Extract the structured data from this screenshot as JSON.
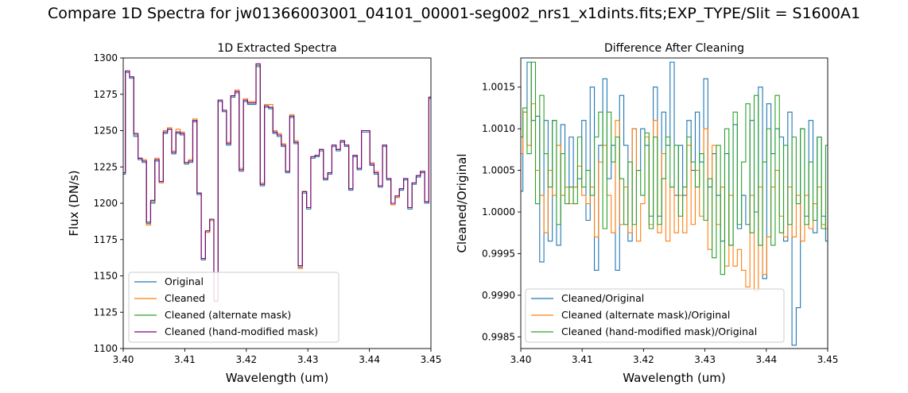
{
  "figure": {
    "suptitle": "Compare 1D Spectra for jw01366003001_04101_00001-seg002_nrs1_x1dints.fits;EXP_TYPE/Slit = S1600A1"
  },
  "chart_data": [
    {
      "type": "line",
      "step": true,
      "title": "1D Extracted Spectra",
      "xlabel": "Wavelength (um)",
      "ylabel": "Flux (DN/s)",
      "xlim": [
        3.4,
        3.45
      ],
      "ylim": [
        1100,
        1300
      ],
      "xticks": [
        "3.40",
        "3.41",
        "3.42",
        "3.43",
        "3.44",
        "3.45"
      ],
      "yticks": [
        "1100",
        "1125",
        "1150",
        "1175",
        "1200",
        "1225",
        "1250",
        "1275",
        "1300"
      ],
      "legend_position": "lower-left",
      "x_start": 3.4,
      "x_step": 0.000685,
      "series": [
        {
          "name": "Original",
          "color": "#1f77b4",
          "values": [
            1220,
            1290,
            1286,
            1246,
            1230,
            1228,
            1186,
            1200,
            1229,
            1214,
            1248,
            1251,
            1234,
            1248,
            1247,
            1227,
            1228,
            1256,
            1206,
            1161,
            1180,
            1188,
            1132,
            1270,
            1263,
            1240,
            1273,
            1276,
            1222,
            1270,
            1268,
            1268,
            1294,
            1212,
            1266,
            1265,
            1248,
            1246,
            1239,
            1221,
            1259,
            1241,
            1156,
            1207,
            1196,
            1231,
            1232,
            1236,
            1216,
            1220,
            1239,
            1236,
            1242,
            1239,
            1209,
            1232,
            1223,
            1249,
            1249,
            1226,
            1220,
            1211,
            1239,
            1216,
            1199,
            1204,
            1209,
            1216,
            1196,
            1213,
            1218,
            1221,
            1200,
            1272,
            1265,
            1272,
            1248,
            1249,
            1265,
            1224,
            1274,
            1223,
            1225
          ]
        },
        {
          "name": "Cleaned",
          "color": "#ff7f0e",
          "values": [
            1221,
            1291,
            1287,
            1248,
            1231,
            1230,
            1185,
            1201,
            1231,
            1214,
            1250,
            1252,
            1236,
            1251,
            1249,
            1228,
            1230,
            1258,
            1207,
            1162,
            1180,
            1188,
            1132,
            1271,
            1264,
            1242,
            1274,
            1278,
            1224,
            1272,
            1270,
            1270,
            1295,
            1214,
            1268,
            1268,
            1250,
            1248,
            1241,
            1222,
            1261,
            1243,
            1155,
            1208,
            1197,
            1232,
            1233,
            1237,
            1217,
            1221,
            1240,
            1237,
            1243,
            1240,
            1210,
            1233,
            1224,
            1250,
            1250,
            1228,
            1222,
            1212,
            1240,
            1217,
            1199,
            1204,
            1210,
            1217,
            1197,
            1214,
            1219,
            1222,
            1201,
            1273,
            1266,
            1273,
            1249,
            1250,
            1266,
            1225,
            1276,
            1224,
            1226
          ]
        },
        {
          "name": "Cleaned (alternate mask)",
          "color": "#2ca02c",
          "values": [
            1221,
            1291,
            1287,
            1247,
            1231,
            1229,
            1186,
            1201,
            1230,
            1215,
            1249,
            1251,
            1235,
            1249,
            1248,
            1227,
            1229,
            1257,
            1207,
            1162,
            1181,
            1189,
            1133,
            1271,
            1264,
            1241,
            1274,
            1277,
            1223,
            1271,
            1269,
            1269,
            1295,
            1213,
            1267,
            1266,
            1249,
            1247,
            1240,
            1222,
            1260,
            1242,
            1157,
            1208,
            1197,
            1232,
            1233,
            1237,
            1217,
            1221,
            1240,
            1237,
            1243,
            1240,
            1210,
            1233,
            1224,
            1250,
            1250,
            1227,
            1221,
            1212,
            1240,
            1217,
            1200,
            1205,
            1210,
            1217,
            1197,
            1214,
            1219,
            1222,
            1201,
            1273,
            1266,
            1273,
            1249,
            1250,
            1266,
            1225,
            1275,
            1224,
            1226
          ]
        },
        {
          "name": "Cleaned (hand-modified mask)",
          "color": "#800080",
          "values": [
            1221,
            1291,
            1287,
            1248,
            1231,
            1229,
            1187,
            1202,
            1230,
            1215,
            1249,
            1251,
            1235,
            1249,
            1248,
            1228,
            1229,
            1257,
            1207,
            1162,
            1181,
            1189,
            1133,
            1271,
            1264,
            1241,
            1274,
            1277,
            1223,
            1271,
            1269,
            1269,
            1296,
            1213,
            1267,
            1266,
            1249,
            1247,
            1240,
            1222,
            1260,
            1242,
            1157,
            1208,
            1197,
            1232,
            1233,
            1237,
            1217,
            1221,
            1240,
            1237,
            1243,
            1240,
            1210,
            1233,
            1224,
            1250,
            1250,
            1227,
            1221,
            1212,
            1240,
            1217,
            1200,
            1205,
            1210,
            1217,
            1197,
            1214,
            1219,
            1222,
            1201,
            1273,
            1266,
            1273,
            1249,
            1250,
            1266,
            1225,
            1275,
            1224,
            1226
          ]
        }
      ]
    },
    {
      "type": "line",
      "step": true,
      "title": "Difference After Cleaning",
      "xlabel": "Wavelength (um)",
      "ylabel": "Cleaned/Original",
      "xlim": [
        3.4,
        3.45
      ],
      "ylim": [
        0.99836,
        1.00185
      ],
      "xticks": [
        "3.40",
        "3.41",
        "3.42",
        "3.43",
        "3.44",
        "3.45"
      ],
      "yticks": [
        "0.9985",
        "0.9990",
        "0.9995",
        "1.0000",
        "1.0005",
        "1.0010",
        "1.0015"
      ],
      "legend_position": "lower-left",
      "x_start": 3.4,
      "x_step": 0.000685,
      "series": [
        {
          "name": "Cleaned/Original",
          "color": "#1f77b4",
          "values": [
            1.00025,
            1.0012,
            1.0018,
            1.0011,
            1.00115,
            0.9994,
            1.0011,
            0.99965,
            1.0011,
            0.9996,
            1.00105,
            1.0003,
            1.0009,
            1.0003,
            1.0004,
            1.0011,
            0.9999,
            1.0015,
            0.9993,
            1.0008,
            1.0016,
            1.0004,
            1.0008,
            0.9993,
            1.0014,
            1.0008,
            0.99965,
            1.001,
            1.0005,
            1.001,
            1.0008,
            0.99995,
            1.0015,
            0.99995,
            1.0012,
            1.0008,
            1.0018,
            1.0002,
            1.0008,
            1.0002,
            1.0011,
            1.0005,
            1.0012,
            1.0006,
            1.0016,
            1.0003,
            1.0007,
            1.0002,
            0.99965,
            1.0007,
            0.9996,
            1.00105,
            0.9998,
            1.0002,
            0.99985,
            1.0011,
            1.0,
            1.0015,
            0.9992,
            1.0013,
            1.0007,
            1.001,
            1.0009,
            0.99965,
            1.0012,
            0.9984,
            0.99885,
            1.001,
            0.99995,
            1.0011,
            0.99975,
            1.0009,
            0.99995,
            0.99965,
            1.0019,
            1.0001,
            1.0013,
            0.9999,
            1.0012,
            1.0001,
            1.0014,
            1.0004,
            1.00105
          ]
        },
        {
          "name": "Cleaned (alternate mask)/Original",
          "color": "#ff7f0e",
          "values": [
            1.0007,
            1.0012,
            1.0008,
            1.0013,
            1.0005,
            1.0002,
            0.99975,
            1.0005,
            1.0002,
            1.0008,
            1.0002,
            1.0003,
            1.0001,
            1.0003,
            1.00055,
            1.0002,
            1.0001,
            1.0003,
            0.9997,
            1.0006,
            1.0008,
            1.0002,
            0.99975,
            1.0011,
            0.99985,
            1.0003,
            0.99975,
            1.001,
            0.99965,
            1.0001,
            1.0009,
            0.99985,
            1.0011,
            0.99975,
            1.0007,
            0.99965,
            1.0003,
            0.99975,
            1.0002,
            0.99975,
            1.0008,
            0.99985,
            1.0005,
            0.99995,
            1.001,
            0.99955,
            1.0008,
            0.99985,
            1.0003,
            0.99935,
            1.0002,
            0.99935,
            0.99955,
            0.9993,
            0.9991,
            1.0002,
            0.99905,
            1.0003,
            0.99925,
            0.9997,
            1.0003,
            1.0005,
            0.99995,
            0.9997,
            1.0003,
            0.9997,
            1.0002,
            0.99965,
            1.0002,
            0.9998,
            1.0001,
            1.0003,
            0.99985,
            0.9998,
            1.0004,
            1.0008,
            1.0004,
            1.0001,
            1.0009,
            1.0005,
            1.0008,
            1.0006,
            1.0005
          ]
        },
        {
          "name": "Cleaned (hand-modified mask)/Original",
          "color": "#2ca02c",
          "values": [
            1.0009,
            1.00125,
            1.0007,
            1.0018,
            1.0001,
            1.0014,
            1.0007,
            1.0003,
            1.0011,
            0.99985,
            1.0007,
            1.0001,
            1.0003,
            1.0001,
            1.0009,
            1.0003,
            1.0005,
            1.0002,
            1.0009,
            1.0012,
            0.9998,
            1.0012,
            1.0006,
            1.0009,
            1.0004,
            0.99985,
            1.0006,
            0.99985,
            1.0005,
            1.0002,
            1.00095,
            0.9998,
            1.0009,
            0.99985,
            1.0004,
            1.0009,
            1.0003,
            1.0008,
            0.99995,
            1.0003,
            1.0009,
            1.0006,
            1.0003,
            1.0007,
            0.9999,
            1.0004,
            0.99945,
            1.0008,
            0.99925,
            1.001,
            0.9996,
            1.0012,
            0.99985,
            1.0006,
            1.0013,
            0.99975,
            1.0014,
            0.9996,
            1.0006,
            1.001,
            0.9996,
            1.0014,
            0.99975,
            1.0008,
            0.99985,
            1.0009,
            1.0001,
            1.001,
            0.99985,
            1.0006,
            0.9999,
            1.0009,
            0.9998,
            1.0008,
            1.001,
            1.0005,
            1.0001,
            1.00115,
            1.0007,
            1.0005,
            1.0006,
            1.0009,
            1.0007
          ]
        }
      ]
    }
  ]
}
